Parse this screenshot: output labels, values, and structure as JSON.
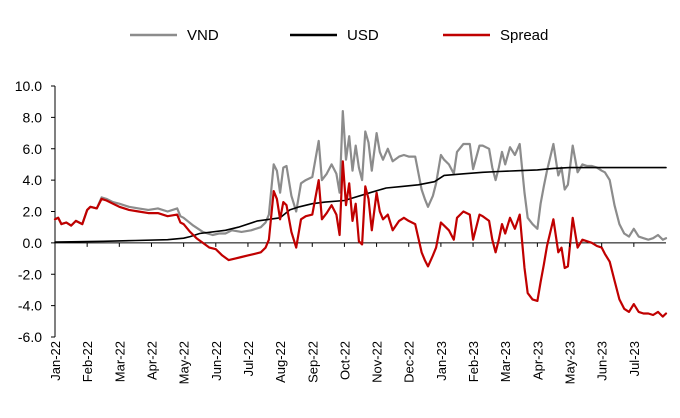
{
  "chart_data": {
    "type": "line",
    "title": "",
    "xlabel": "",
    "ylabel": "",
    "ylim": [
      -6.0,
      10.0
    ],
    "ytick_step": 2.0,
    "yticks": [
      "10.0",
      "8.0",
      "6.0",
      "4.0",
      "2.0",
      "0.0",
      "-2.0",
      "-4.0",
      "-6.0"
    ],
    "x_range_months": [
      0,
      19.0
    ],
    "xticks": [
      "Jan-22",
      "Feb-22",
      "Mar-22",
      "Apr-22",
      "May-22",
      "Jun-22",
      "Jul-22",
      "Aug-22",
      "Sep-22",
      "Oct-22",
      "Nov-22",
      "Dec-22",
      "Jan-23",
      "Feb-23",
      "Mar-23",
      "Apr-23",
      "May-23",
      "Jun-23",
      "Jul-23"
    ],
    "x_unit": "months since Jan-22",
    "legend_position": "top",
    "series": [
      {
        "name": "VND",
        "color": "#8c8c8c",
        "x": [
          0,
          0.1,
          0.2,
          0.35,
          0.5,
          0.65,
          0.85,
          1.0,
          1.1,
          1.3,
          1.45,
          1.6,
          1.8,
          2.0,
          2.3,
          2.6,
          2.9,
          3.2,
          3.5,
          3.8,
          3.9,
          4.0,
          4.3,
          4.6,
          4.9,
          5.1,
          5.3,
          5.5,
          5.8,
          6.1,
          6.4,
          6.55,
          6.65,
          6.8,
          6.9,
          7.0,
          7.1,
          7.2,
          7.35,
          7.5,
          7.65,
          7.8,
          8.0,
          8.2,
          8.3,
          8.45,
          8.6,
          8.75,
          8.85,
          8.95,
          9.05,
          9.15,
          9.25,
          9.35,
          9.45,
          9.55,
          9.65,
          9.75,
          9.85,
          10.0,
          10.1,
          10.2,
          10.35,
          10.5,
          10.7,
          10.85,
          11.0,
          11.2,
          11.4,
          11.5,
          11.6,
          11.75,
          11.85,
          12.0,
          12.1,
          12.25,
          12.4,
          12.5,
          12.7,
          12.9,
          13.0,
          13.2,
          13.3,
          13.5,
          13.6,
          13.7,
          13.8,
          13.9,
          14.0,
          14.15,
          14.3,
          14.45,
          14.6,
          14.7,
          14.85,
          15.0,
          15.1,
          15.2,
          15.3,
          15.5,
          15.65,
          15.75,
          15.85,
          15.95,
          16.1,
          16.25,
          16.4,
          16.55,
          16.7,
          16.85,
          17.0,
          17.1,
          17.25,
          17.4,
          17.55,
          17.7,
          17.85,
          18.0,
          18.15,
          18.3,
          18.45,
          18.6,
          18.75,
          18.9,
          19.0
        ],
        "values": [
          1.5,
          1.6,
          1.2,
          1.3,
          1.1,
          1.4,
          1.2,
          2.1,
          2.3,
          2.2,
          2.9,
          2.8,
          2.6,
          2.5,
          2.3,
          2.2,
          2.1,
          2.2,
          2.0,
          2.2,
          1.7,
          1.6,
          1.1,
          0.7,
          0.5,
          0.6,
          0.6,
          0.8,
          0.7,
          0.8,
          1.0,
          1.3,
          1.8,
          5.0,
          4.6,
          3.2,
          4.8,
          4.9,
          3.0,
          2.0,
          3.8,
          4.0,
          4.2,
          6.5,
          4.0,
          4.4,
          5.0,
          4.4,
          3.2,
          8.4,
          5.3,
          6.8,
          4.6,
          6.2,
          4.8,
          4.0,
          7.1,
          6.4,
          4.6,
          7.0,
          5.8,
          5.3,
          6.0,
          5.2,
          5.5,
          5.6,
          5.5,
          5.5,
          3.4,
          2.8,
          2.3,
          3.0,
          3.8,
          5.6,
          5.3,
          5.0,
          4.4,
          5.8,
          6.3,
          6.3,
          4.7,
          6.2,
          6.2,
          6.0,
          4.8,
          4.0,
          4.8,
          5.8,
          5.0,
          6.1,
          5.6,
          6.3,
          3.2,
          1.6,
          1.2,
          0.9,
          2.5,
          3.6,
          4.6,
          6.3,
          4.3,
          4.8,
          3.4,
          3.7,
          6.2,
          4.5,
          5.0,
          4.9,
          4.9,
          4.8,
          4.6,
          4.5,
          4.0,
          2.4,
          1.2,
          0.6,
          0.4,
          0.9,
          0.4,
          0.3,
          0.2,
          0.3,
          0.5,
          0.2,
          0.3
        ]
      },
      {
        "name": "USD",
        "color": "#000000",
        "x": [
          0,
          1.5,
          2.5,
          3.5,
          4.0,
          4.2,
          4.5,
          5.3,
          5.7,
          6.3,
          7.0,
          7.3,
          7.6,
          8.0,
          8.4,
          9.0,
          9.8,
          10.3,
          10.8,
          11.3,
          11.8,
          12.1,
          12.7,
          13.3,
          13.8,
          14.4,
          15.0,
          15.5,
          16.0,
          16.5,
          17.0,
          18.0,
          19.0
        ],
        "values": [
          0.05,
          0.1,
          0.15,
          0.2,
          0.3,
          0.4,
          0.6,
          0.8,
          1.0,
          1.4,
          1.6,
          2.1,
          2.3,
          2.5,
          2.6,
          2.7,
          3.2,
          3.5,
          3.6,
          3.7,
          3.9,
          4.3,
          4.4,
          4.5,
          4.55,
          4.6,
          4.65,
          4.75,
          4.8,
          4.8,
          4.8,
          4.8,
          4.8
        ]
      },
      {
        "name": "Spread",
        "color": "#c00000",
        "x": [
          0,
          0.1,
          0.2,
          0.35,
          0.5,
          0.65,
          0.85,
          1.0,
          1.1,
          1.3,
          1.45,
          1.6,
          1.8,
          2.0,
          2.3,
          2.6,
          2.9,
          3.2,
          3.5,
          3.8,
          3.9,
          4.0,
          4.2,
          4.4,
          4.6,
          4.8,
          5.0,
          5.2,
          5.4,
          5.6,
          5.8,
          6.0,
          6.2,
          6.4,
          6.55,
          6.65,
          6.8,
          6.9,
          7.0,
          7.1,
          7.2,
          7.35,
          7.5,
          7.65,
          7.8,
          8.0,
          8.2,
          8.3,
          8.45,
          8.6,
          8.75,
          8.85,
          8.95,
          9.05,
          9.15,
          9.25,
          9.35,
          9.45,
          9.55,
          9.65,
          9.75,
          9.85,
          10.0,
          10.1,
          10.2,
          10.35,
          10.5,
          10.7,
          10.85,
          11.0,
          11.2,
          11.4,
          11.5,
          11.6,
          11.75,
          11.85,
          12.0,
          12.1,
          12.25,
          12.4,
          12.5,
          12.7,
          12.9,
          13.0,
          13.2,
          13.3,
          13.5,
          13.6,
          13.7,
          13.8,
          13.9,
          14.0,
          14.15,
          14.3,
          14.45,
          14.6,
          14.7,
          14.85,
          15.0,
          15.1,
          15.2,
          15.3,
          15.5,
          15.65,
          15.75,
          15.85,
          15.95,
          16.1,
          16.25,
          16.4,
          16.55,
          16.7,
          16.85,
          17.0,
          17.1,
          17.25,
          17.4,
          17.55,
          17.7,
          17.85,
          18.0,
          18.15,
          18.3,
          18.45,
          18.6,
          18.75,
          18.9,
          19.0
        ],
        "values": [
          1.5,
          1.6,
          1.2,
          1.3,
          1.1,
          1.4,
          1.2,
          2.1,
          2.3,
          2.2,
          2.8,
          2.7,
          2.5,
          2.3,
          2.1,
          2.0,
          1.9,
          1.9,
          1.7,
          1.8,
          1.3,
          1.2,
          0.7,
          0.3,
          0.0,
          -0.3,
          -0.4,
          -0.8,
          -1.1,
          -1.0,
          -0.9,
          -0.8,
          -0.7,
          -0.6,
          -0.3,
          0.2,
          3.3,
          2.8,
          1.5,
          2.6,
          2.4,
          0.7,
          -0.3,
          1.5,
          1.7,
          1.8,
          4.0,
          1.5,
          1.9,
          2.4,
          1.8,
          0.5,
          5.2,
          2.4,
          3.8,
          1.4,
          2.5,
          0.1,
          -0.1,
          3.6,
          2.8,
          0.8,
          3.2,
          2.0,
          1.5,
          1.8,
          0.8,
          1.4,
          1.6,
          1.4,
          1.2,
          -0.6,
          -1.1,
          -1.5,
          -0.8,
          -0.3,
          1.3,
          1.1,
          0.8,
          0.2,
          1.6,
          2.0,
          1.8,
          0.2,
          1.8,
          1.7,
          1.4,
          0.2,
          -0.6,
          0.2,
          1.2,
          0.6,
          1.6,
          0.9,
          1.8,
          -1.6,
          -3.2,
          -3.6,
          -3.7,
          -2.5,
          -1.4,
          -0.2,
          1.5,
          -0.6,
          -0.3,
          -1.6,
          -1.5,
          1.6,
          -0.3,
          0.2,
          0.1,
          0.0,
          -0.2,
          -0.3,
          -0.7,
          -1.2,
          -2.4,
          -3.6,
          -4.2,
          -4.4,
          -3.9,
          -4.4,
          -4.5,
          -4.5,
          -4.6,
          -4.4,
          -4.7,
          -4.5
        ]
      }
    ]
  }
}
